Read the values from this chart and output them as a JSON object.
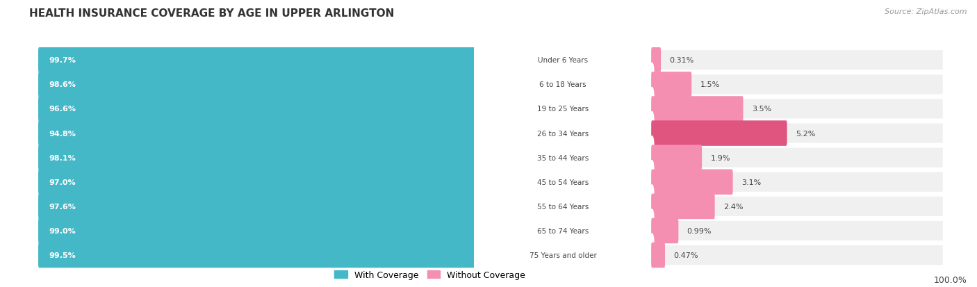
{
  "title": "HEALTH INSURANCE COVERAGE BY AGE IN UPPER ARLINGTON",
  "source": "Source: ZipAtlas.com",
  "categories": [
    "Under 6 Years",
    "6 to 18 Years",
    "19 to 25 Years",
    "26 to 34 Years",
    "35 to 44 Years",
    "45 to 54 Years",
    "55 to 64 Years",
    "65 to 74 Years",
    "75 Years and older"
  ],
  "with_coverage": [
    99.7,
    98.6,
    96.6,
    94.8,
    98.1,
    97.0,
    97.6,
    99.0,
    99.5
  ],
  "without_coverage": [
    0.31,
    1.5,
    3.5,
    5.2,
    1.9,
    3.1,
    2.4,
    0.99,
    0.47
  ],
  "with_coverage_labels": [
    "99.7%",
    "98.6%",
    "96.6%",
    "94.8%",
    "98.1%",
    "97.0%",
    "97.6%",
    "99.0%",
    "99.5%"
  ],
  "without_coverage_labels": [
    "0.31%",
    "1.5%",
    "3.5%",
    "5.2%",
    "1.9%",
    "3.1%",
    "2.4%",
    "0.99%",
    "0.47%"
  ],
  "color_with": "#45b8c8",
  "color_without_base": "#f48fb1",
  "color_without_highlight": "#e05580",
  "row_bg_color": "#f0f0f0",
  "title_color": "#333333",
  "label_color_white": "#ffffff",
  "label_color_dark": "#444444",
  "source_color": "#999999",
  "bottom_label": "100.0%",
  "fig_width": 14.06,
  "fig_height": 4.14,
  "dpi": 100
}
